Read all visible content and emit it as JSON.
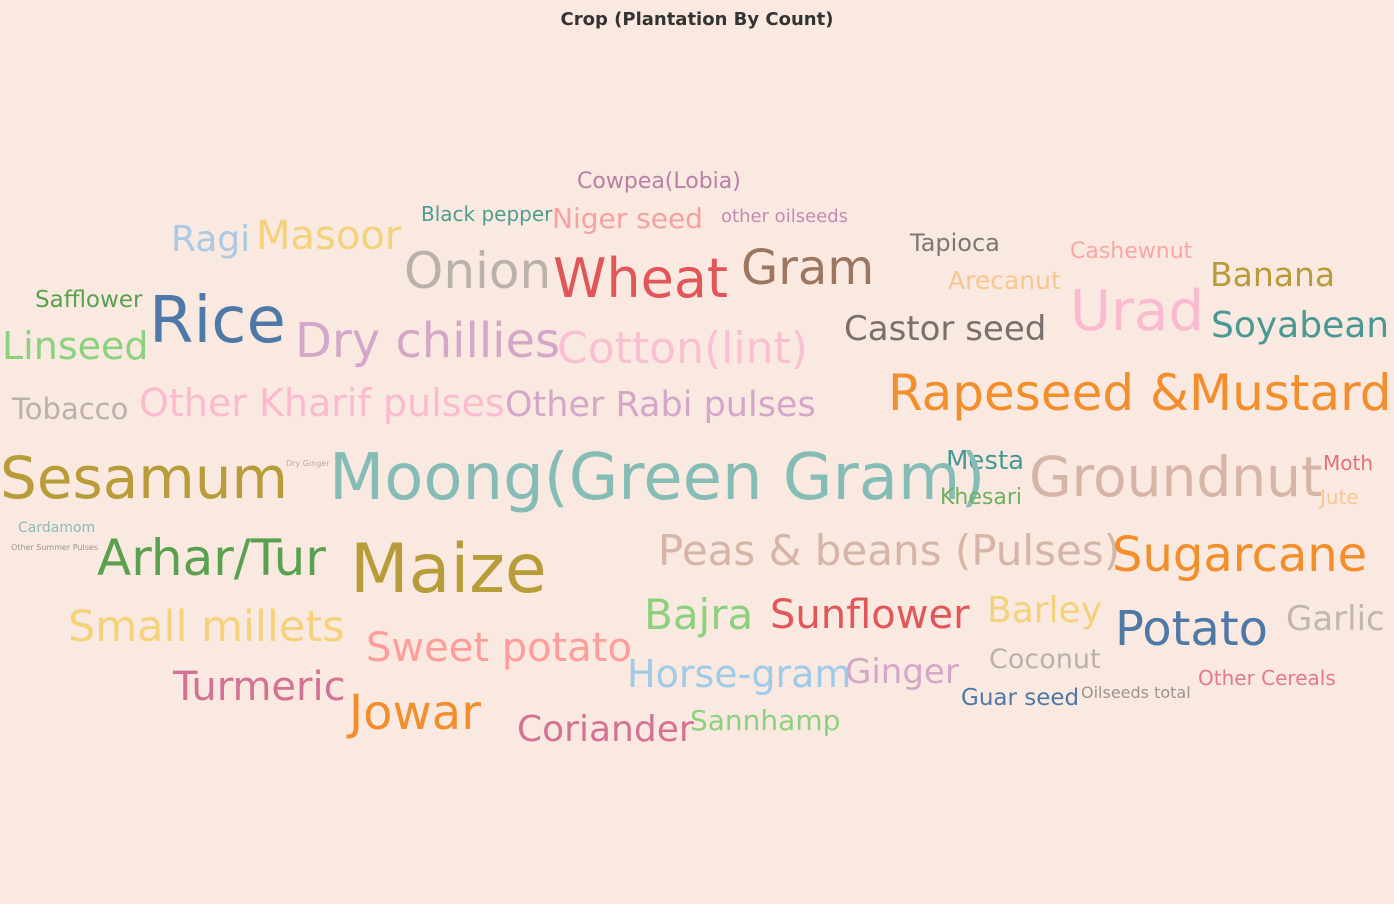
{
  "chart_data": {
    "type": "wordcloud",
    "title": "Crop (Plantation By Count)",
    "words": [
      {
        "text": "Cowpea(Lobia)",
        "color": "#b87fa7"
      },
      {
        "text": "Black pepper",
        "color": "#4d9c8f"
      },
      {
        "text": "Niger seed",
        "color": "#f4a3a0"
      },
      {
        "text": "other oilseeds",
        "color": "#c38ab3"
      },
      {
        "text": "Ragi",
        "color": "#a9c9e5"
      },
      {
        "text": "Masoor",
        "color": "#f3d27a"
      },
      {
        "text": "Tapioca",
        "color": "#7b7774"
      },
      {
        "text": "Cashewnut",
        "color": "#f7a8a4"
      },
      {
        "text": "Onion",
        "color": "#bab0ac"
      },
      {
        "text": "Wheat",
        "color": "#e15759"
      },
      {
        "text": "Gram",
        "color": "#9d7660"
      },
      {
        "text": "Arecanut",
        "color": "#f9c68f"
      },
      {
        "text": "Banana",
        "color": "#b89c3a"
      },
      {
        "text": "Safflower",
        "color": "#59a14f"
      },
      {
        "text": "Urad",
        "color": "#fbbad0"
      },
      {
        "text": "Rice",
        "color": "#4e79a7"
      },
      {
        "text": "Castor seed",
        "color": "#79706e"
      },
      {
        "text": "Soyabean",
        "color": "#499894"
      },
      {
        "text": "Linseed",
        "color": "#8cd17d"
      },
      {
        "text": "Dry chillies",
        "color": "#d4a6c8"
      },
      {
        "text": "Cotton(lint)",
        "color": "#fabfd2"
      },
      {
        "text": "Rapeseed &Mustard",
        "color": "#f28e2b"
      },
      {
        "text": "Tobacco",
        "color": "#bab0ac"
      },
      {
        "text": "Other Kharif pulses",
        "color": "#fbbad0"
      },
      {
        "text": "Other Rabi pulses",
        "color": "#d4a6c8"
      },
      {
        "text": "Mesta",
        "color": "#499894"
      },
      {
        "text": "Moth",
        "color": "#e4707a"
      },
      {
        "text": "Sesamum",
        "color": "#b89c3a"
      },
      {
        "text": "Dry Ginger",
        "color": "#b5aba6"
      },
      {
        "text": "Moong(Green Gram)",
        "color": "#86bcb6"
      },
      {
        "text": "Groundnut",
        "color": "#d7b5a6"
      },
      {
        "text": "Khesari",
        "color": "#6fb05f"
      },
      {
        "text": "Jute",
        "color": "#f9c68f"
      },
      {
        "text": "Cardamom",
        "color": "#86bcb6"
      },
      {
        "text": "Other Summer Pulses",
        "color": "#9c948f"
      },
      {
        "text": "Arhar/Tur",
        "color": "#59a14f"
      },
      {
        "text": "Maize",
        "color": "#b89c3a"
      },
      {
        "text": "Peas & beans (Pulses)",
        "color": "#d7b5a6"
      },
      {
        "text": "Sugarcane",
        "color": "#f28e2b"
      },
      {
        "text": "Small millets",
        "color": "#f3d27a"
      },
      {
        "text": "Bajra",
        "color": "#8cd17d"
      },
      {
        "text": "Sunflower",
        "color": "#e15759"
      },
      {
        "text": "Barley",
        "color": "#f3d27a"
      },
      {
        "text": "Potato",
        "color": "#4e79a7"
      },
      {
        "text": "Garlic",
        "color": "#c2b6b0"
      },
      {
        "text": "Sweet potato",
        "color": "#ff9d9a"
      },
      {
        "text": "Horse-gram",
        "color": "#a0cbe8"
      },
      {
        "text": "Ginger",
        "color": "#d4a6c8"
      },
      {
        "text": "Coconut",
        "color": "#bab0ac"
      },
      {
        "text": "Turmeric",
        "color": "#d37295"
      },
      {
        "text": "Other Cereals",
        "color": "#e17a8b"
      },
      {
        "text": "Guar seed",
        "color": "#4e79a7"
      },
      {
        "text": "Oilseeds total",
        "color": "#9c948f"
      },
      {
        "text": "Jowar",
        "color": "#f28e2b"
      },
      {
        "text": "Coriander",
        "color": "#d37295"
      },
      {
        "text": "Sannhamp",
        "color": "#8cd17d"
      }
    ]
  }
}
